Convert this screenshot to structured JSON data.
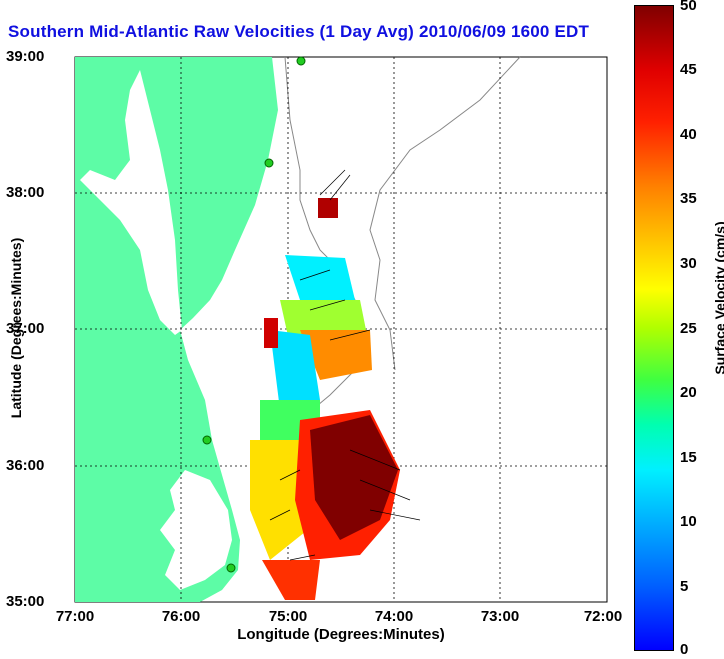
{
  "title": "Southern Mid-Atlantic Raw Velocities (1 Day Avg) 2010/06/09 1600 EDT",
  "xlabel": "Longitude (Degrees:Minutes)",
  "ylabel": "Latitude (Degrees:Minutes)",
  "x_ticks": [
    "77:00",
    "76:00",
    "75:00",
    "74:00",
    "73:00",
    "72:00"
  ],
  "y_ticks": [
    "39:00",
    "38:00",
    "37:00",
    "36:00",
    "35:00"
  ],
  "colorbar": {
    "label": "Surface Velocity (cm/s)",
    "ticks": [
      "50",
      "45",
      "40",
      "35",
      "30",
      "25",
      "20",
      "15",
      "10",
      "5",
      "0"
    ],
    "range": [
      0,
      50
    ]
  },
  "colors": {
    "land": "#5dfca6",
    "ocean": "#ffffff",
    "station": "#22cc22",
    "title": "#1010e0"
  }
}
